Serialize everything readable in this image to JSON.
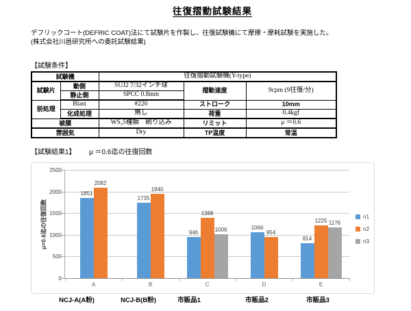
{
  "doc": {
    "title": "往復摺動試験結果",
    "intro_line1": "デフリックコート(DEFRIC COAT)法にて試験片を作製し、往復試験機にて摩擦・摩耗試験を実施した。",
    "intro_line2": "(株式会社川邑研究所への委託試験結果)",
    "conditions_heading": "【試験条件】",
    "results_heading": "【試験結果1】",
    "results_subtitle": "μ ＝0.6迄の往復回数"
  },
  "conditions_table": {
    "machine_label": "試験機",
    "machine_value": "往復摺動試験機(Y-type)",
    "specimen_label": "試験片",
    "moving_label": "動側",
    "moving_value": "SUJ2 7/32インチ球",
    "static_label": "静止側",
    "static_value": "SPCC 0.8mm",
    "speed_label": "摺動速度",
    "speed_value": "9cpm (9往復/分)",
    "pretreat_label": "前処理",
    "blast_label": "Blast",
    "blast_value": "#220",
    "chem_label": "化成処理",
    "chem_value": "無し",
    "stroke_label": "ストローク",
    "stroke_value": "10mm",
    "load_label": "荷重",
    "load_value": "0.4kgf",
    "coating_label": "被膜",
    "coating_value": "WS₂5種類　刷り込み",
    "limit_label": "リミット",
    "limit_value": "μ ＝0.6",
    "atmosphere_label": "雰囲気",
    "atmosphere_value": "Dry",
    "tp_label": "TP温度",
    "tp_value": "常温"
  },
  "chart_data": {
    "type": "bar",
    "title": "μ ＝0.6迄の往復回数",
    "ylabel": "μ=0.6迄の往復回数",
    "xlabel": "",
    "ylim": [
      0,
      2500
    ],
    "ytick_step": 500,
    "grid": true,
    "legend_position": "right",
    "categories": [
      "A",
      "B",
      "C",
      "D",
      "E"
    ],
    "group_labels": [
      "NCJ-A(A粉)",
      "NCJ-B(B粉)",
      "市販品1",
      "市販品2",
      "市販品3"
    ],
    "series": [
      {
        "name": "n1",
        "color": "#5b9bd5",
        "values": [
          1851,
          1735,
          946,
          1066,
          814
        ]
      },
      {
        "name": "n2",
        "color": "#ed7d31",
        "values": [
          2082,
          1940,
          1388,
          954,
          1225
        ]
      },
      {
        "name": "n3",
        "color": "#a5a5a5",
        "values": [
          null,
          null,
          1006,
          null,
          1176
        ]
      }
    ]
  }
}
